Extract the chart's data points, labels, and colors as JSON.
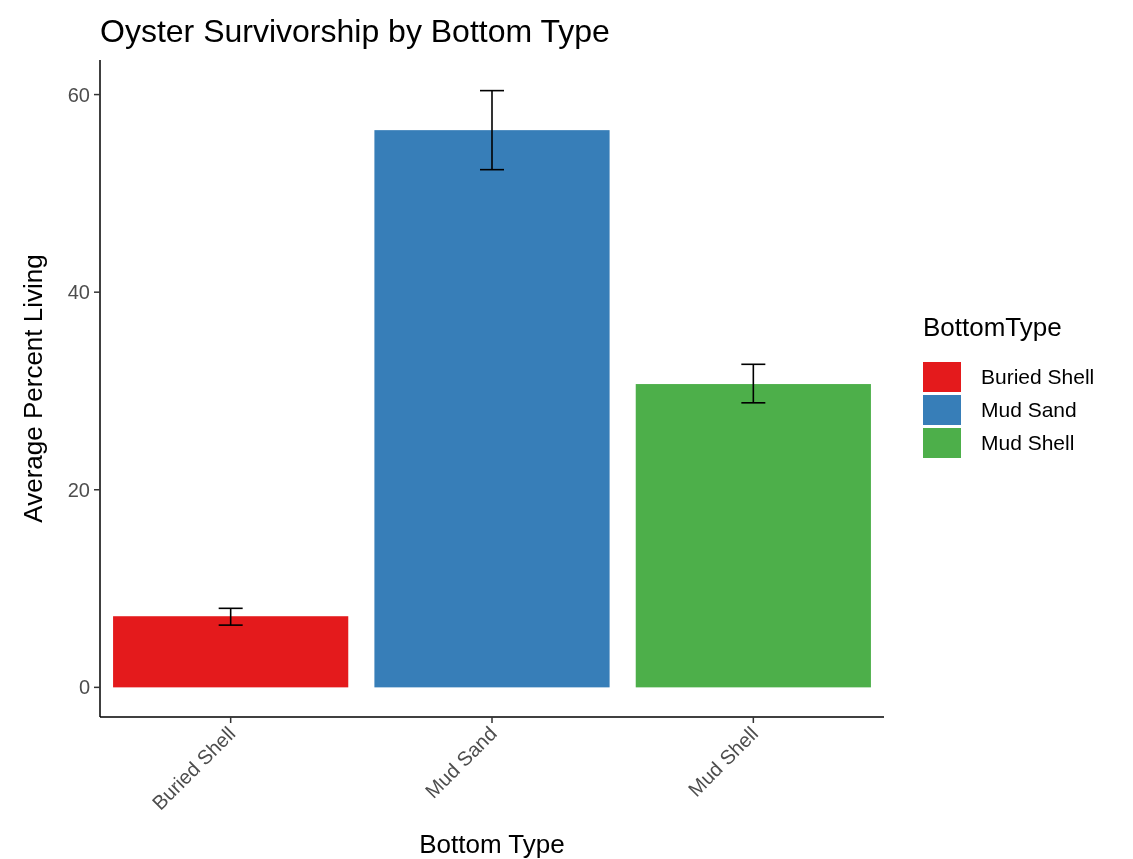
{
  "chart_data": {
    "type": "bar",
    "title": "Oyster Survivorship by Bottom Type",
    "xlabel": "Bottom Type",
    "ylabel": "Average Percent Living",
    "legend_title": "BottomType",
    "categories": [
      "Buried Shell",
      "Mud Sand",
      "Mud Shell"
    ],
    "series": [
      {
        "name": "Buried Shell",
        "color": "#e41a1c",
        "values": [
          7.2,
          null,
          null
        ],
        "errors": [
          [
            6.3,
            8.0
          ],
          null,
          null
        ]
      },
      {
        "name": "Mud Sand",
        "color": "#377eb8",
        "values": [
          null,
          56.4,
          null
        ],
        "errors": [
          null,
          [
            52.4,
            60.4
          ],
          null
        ]
      },
      {
        "name": "Mud Shell",
        "color": "#4daf4a",
        "values": [
          null,
          null,
          30.7
        ],
        "errors": [
          null,
          null,
          [
            28.8,
            32.7
          ]
        ]
      }
    ],
    "ylim": [
      -3,
      63.5
    ],
    "yticks": [
      0,
      20,
      40,
      60
    ],
    "legend": "right"
  }
}
